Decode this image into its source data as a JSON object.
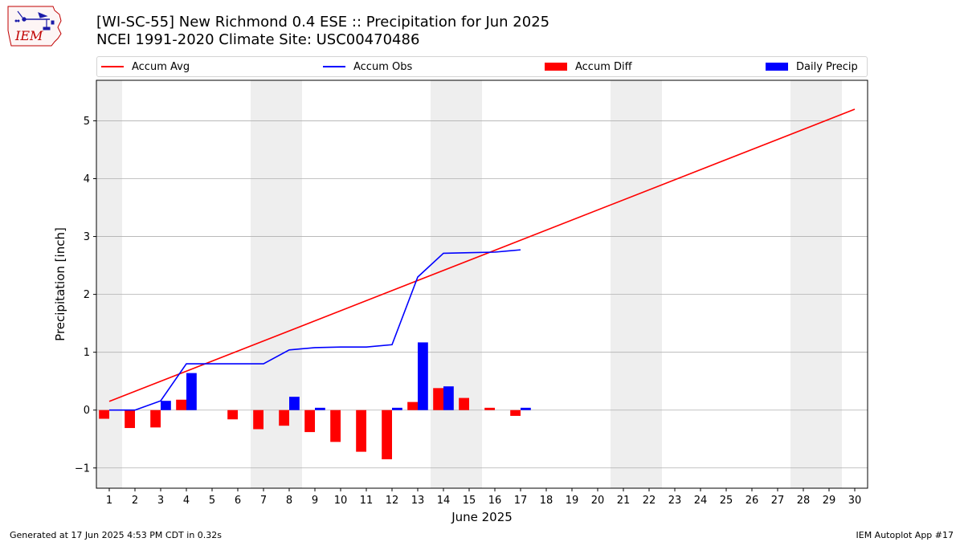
{
  "header": {
    "title": "[WI-SC-55] New Richmond 0.4 ESE :: Precipitation for Jun 2025",
    "subtitle": "NCEI 1991-2020 Climate Site: USC00470486",
    "logo_text": "IEM"
  },
  "footer": {
    "generated": "Generated at 17 Jun 2025 4:53 PM CDT in 0.32s",
    "app": "IEM Autoplot App #17"
  },
  "colors": {
    "accum_avg": "#ff0000",
    "accum_obs": "#0000ff",
    "accum_diff": "#ff0000",
    "daily_precip": "#0000ff",
    "weekend_shade": "#eeeeee",
    "grid": "#b0b0b0"
  },
  "chart_data": {
    "type": "bar",
    "xlabel": "June 2025",
    "ylabel": "Precipitation [inch]",
    "xlim": [
      0.5,
      30.5
    ],
    "ylim": [
      -1.35,
      5.7
    ],
    "yticks": [
      -1,
      0,
      1,
      2,
      3,
      4,
      5
    ],
    "ytick_labels": [
      "−1",
      "0",
      "1",
      "2",
      "3",
      "4",
      "5"
    ],
    "x_ticks": [
      1,
      2,
      3,
      4,
      5,
      6,
      7,
      8,
      9,
      10,
      11,
      12,
      13,
      14,
      15,
      16,
      17,
      18,
      19,
      20,
      21,
      22,
      23,
      24,
      25,
      26,
      27,
      28,
      29,
      30
    ],
    "grid": "horizontal",
    "legend_position": "top, above plot",
    "shaded_weekends": [
      [
        0.5,
        1.5
      ],
      [
        6.5,
        8.5
      ],
      [
        13.5,
        15.5
      ],
      [
        20.5,
        22.5
      ],
      [
        27.5,
        29.5
      ]
    ],
    "series": [
      {
        "name": "Accum Avg",
        "kind": "line",
        "x": [
          1,
          30
        ],
        "values": [
          0.15,
          5.2
        ]
      },
      {
        "name": "Accum Obs",
        "kind": "line",
        "x": [
          1,
          2,
          3,
          4,
          5,
          6,
          7,
          8,
          9,
          10,
          11,
          12,
          13,
          14,
          15,
          16,
          17
        ],
        "values": [
          0.0,
          0.0,
          0.16,
          0.8,
          0.8,
          0.8,
          0.8,
          1.04,
          1.08,
          1.09,
          1.09,
          1.13,
          2.3,
          2.71,
          2.72,
          2.73,
          2.77
        ]
      },
      {
        "name": "Accum Diff",
        "kind": "bar",
        "x": [
          1,
          2,
          3,
          4,
          5,
          6,
          7,
          8,
          9,
          10,
          11,
          12,
          13,
          14,
          15,
          16,
          17
        ],
        "values": [
          -0.15,
          -0.31,
          -0.3,
          0.18,
          0.0,
          -0.16,
          -0.33,
          -0.27,
          -0.38,
          -0.55,
          -0.72,
          -0.85,
          0.14,
          0.38,
          0.21,
          0.04,
          -0.1
        ]
      },
      {
        "name": "Daily Precip",
        "kind": "bar",
        "x": [
          1,
          2,
          3,
          4,
          5,
          6,
          7,
          8,
          9,
          10,
          11,
          12,
          13,
          14,
          15,
          16,
          17
        ],
        "values": [
          0.0,
          0.0,
          0.16,
          0.64,
          0.0,
          0.0,
          0.0,
          0.23,
          0.04,
          0.0,
          0.0,
          0.04,
          1.17,
          0.41,
          0.0,
          0.0,
          0.04
        ]
      }
    ]
  }
}
